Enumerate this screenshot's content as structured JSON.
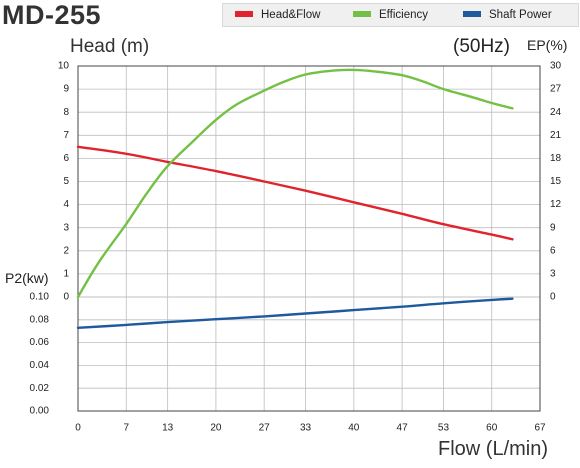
{
  "header": {
    "model": "MD-255",
    "head_axis_title": "Head (m)",
    "frequency": "(50Hz)",
    "ep_axis_title": "EP(%)",
    "power_axis_title": "P2(kw)",
    "flow_axis_title": "Flow (L/min)"
  },
  "legend": {
    "items": [
      {
        "label": "Head&Flow",
        "color": "#e0242e"
      },
      {
        "label": "Efficiency",
        "color": "#74c044"
      },
      {
        "label": "Shaft Power",
        "color": "#1f5a9e"
      }
    ]
  },
  "chart_data": {
    "type": "line",
    "title": "MD-255",
    "xlabel": "Flow (L/min)",
    "x_ticks": [
      "0",
      "7",
      "13",
      "20",
      "27",
      "33",
      "40",
      "47",
      "53",
      "60",
      "67"
    ],
    "xlim": [
      0,
      67
    ],
    "head_axis": {
      "label": "Head (m)",
      "ylim": [
        0,
        10
      ],
      "ticks": [
        "0",
        "1",
        "2",
        "3",
        "4",
        "5",
        "6",
        "7",
        "8",
        "9",
        "10"
      ]
    },
    "ep_axis": {
      "label": "EP(%)",
      "ylim": [
        0,
        30
      ],
      "ticks": [
        "0",
        "3",
        "6",
        "9",
        "12",
        "15",
        "18",
        "21",
        "24",
        "27",
        "30"
      ]
    },
    "power_axis": {
      "label": "P2(kw)",
      "ylim": [
        0,
        0.1
      ],
      "ticks": [
        "0.00",
        "0.02",
        "0.04",
        "0.06",
        "0.08",
        "0.10"
      ]
    },
    "grid": true,
    "legend_position": "top-right",
    "series": [
      {
        "name": "Head&Flow",
        "axis": "head",
        "color": "#e0242e",
        "x": [
          0,
          7,
          13,
          20,
          27,
          33,
          40,
          47,
          53,
          60,
          63
        ],
        "y": [
          6.5,
          6.2,
          5.85,
          5.45,
          5.0,
          4.6,
          4.1,
          3.6,
          3.15,
          2.7,
          2.5
        ]
      },
      {
        "name": "Efficiency",
        "axis": "ep",
        "color": "#74c044",
        "x": [
          0,
          3,
          7,
          10,
          13,
          17,
          20,
          23,
          27,
          30,
          33,
          37,
          40,
          43,
          47,
          50,
          53,
          57,
          60,
          63
        ],
        "y": [
          0,
          4.5,
          9.5,
          13.5,
          17.0,
          20.5,
          23.0,
          25.0,
          26.8,
          28.0,
          28.9,
          29.4,
          29.5,
          29.3,
          28.8,
          28.0,
          27.0,
          26.0,
          25.2,
          24.5
        ]
      },
      {
        "name": "Shaft Power",
        "axis": "power",
        "color": "#1f5a9e",
        "x": [
          0,
          7,
          13,
          20,
          27,
          33,
          40,
          47,
          53,
          60,
          63
        ],
        "y": [
          0.073,
          0.0755,
          0.078,
          0.0805,
          0.083,
          0.0855,
          0.0885,
          0.0915,
          0.0945,
          0.0975,
          0.0985
        ]
      }
    ]
  }
}
